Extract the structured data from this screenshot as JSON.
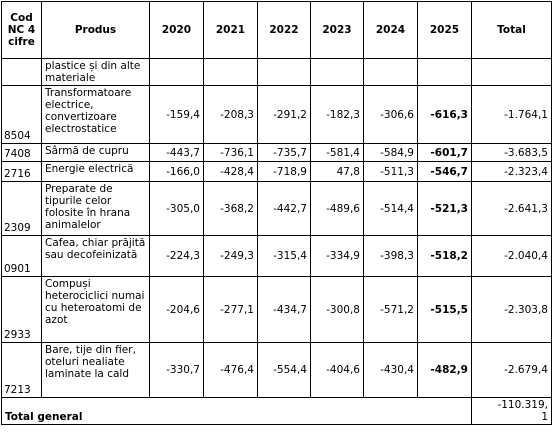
{
  "table": {
    "header": [
      "Cod NC 4 cifre",
      "Produs",
      "2020",
      "2021",
      "2022",
      "2023",
      "2024",
      "2025",
      "Total"
    ],
    "rows": [
      {
        "product": "plastice și din alte materiale"
      },
      {
        "code": "8504",
        "product": "Transformatoare electrice, convertizoare electrostatice",
        "values": [
          "-159,4",
          "-208,3",
          "-291,2",
          "-182,3",
          "-306,6",
          "-616,3"
        ],
        "total": "-1.764,1"
      },
      {
        "code": "7408",
        "product": "Sârmă de cupru",
        "values": [
          "-443,7",
          "-736,1",
          "-735,7",
          "-581,4",
          "-584,9",
          "-601,7"
        ],
        "total": "-3.683,5"
      },
      {
        "code": "2716",
        "product": "Energie electrică",
        "values": [
          "-166,0",
          "-428,4",
          "-718,9",
          "47,8",
          "-511,3",
          "-546,7"
        ],
        "total": "-2.323,4"
      },
      {
        "code": "2309",
        "product": "Preparate de tipurile celor folosite în hrana animalelor",
        "values": [
          "-305,0",
          "-368,2",
          "-442,7",
          "-489,6",
          "-514,4",
          "-521,3"
        ],
        "total": "-2.641,3"
      },
      {
        "code": "0901",
        "product": "Cafea, chiar prăjită sau decofeinizată",
        "values": [
          "-224,3",
          "-249,3",
          "-315,4",
          "-334,9",
          "-398,3",
          "-518,2"
        ],
        "total": "-2.040,4"
      },
      {
        "code": "2933",
        "product": "Compuși heterociclici numai cu heteroatomi de azot",
        "values": [
          "-204,6",
          "-277,1",
          "-434,7",
          "-300,8",
          "-571,2",
          "-515,5"
        ],
        "total": "-2.303,8"
      },
      {
        "code": "7213",
        "product": "Bare, tije din fier, oteluri nealiate laminate la cald",
        "values": [
          "-330,7",
          "-476,4",
          "-554,4",
          "-404,6",
          "-430,4",
          "-482,9"
        ],
        "total": "-2.679,4"
      }
    ],
    "total_row": {
      "label": "Total general",
      "total": "-110.319,1"
    }
  }
}
